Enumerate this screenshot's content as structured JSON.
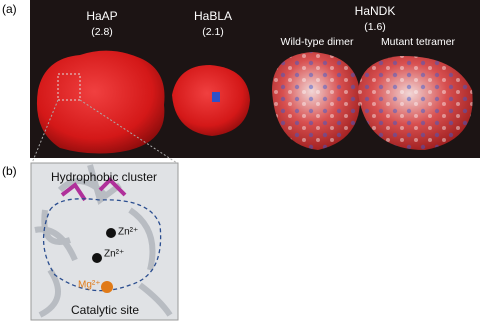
{
  "panel_a": {
    "label": "(a)",
    "proteins": [
      {
        "name": "HaAP",
        "value": "(2.8)"
      },
      {
        "name": "HaBLA",
        "value": "(2.1)"
      },
      {
        "name": "HaNDK",
        "value": "(1.6)"
      }
    ],
    "subpanels": [
      "Wild-type dimer",
      "Mutant tetramer"
    ]
  },
  "panel_b": {
    "label": "(b)",
    "title": "Hydrophobic cluster",
    "ions": [
      "Zn²⁺",
      "Zn²⁺",
      "Mg²⁺"
    ],
    "caption": "Catalytic site"
  }
}
